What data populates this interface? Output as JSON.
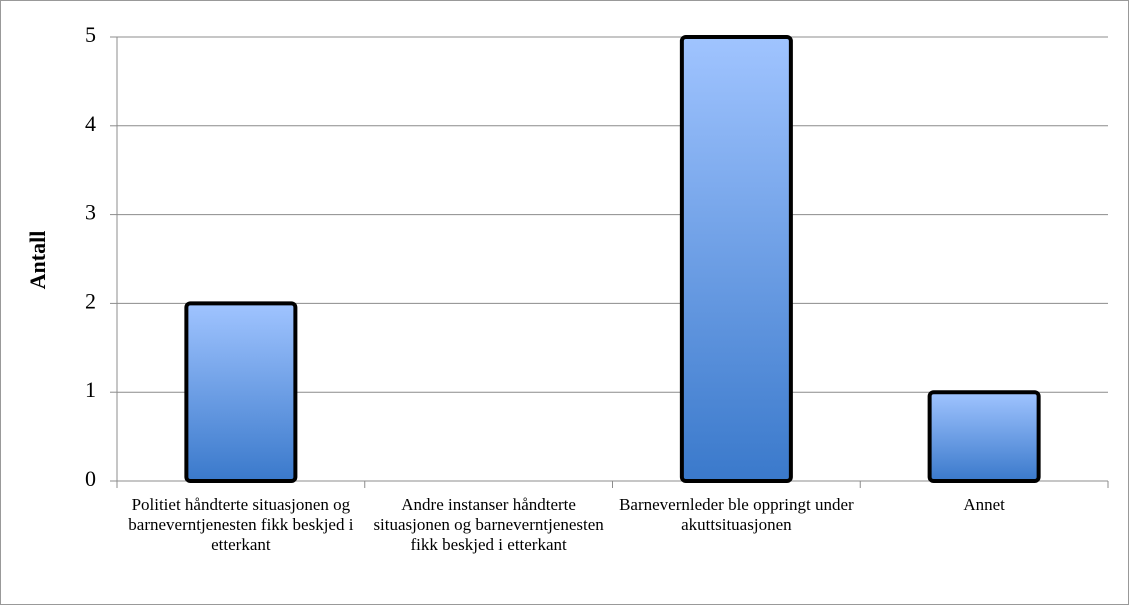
{
  "chart_data": {
    "type": "bar",
    "y_label": "Antall",
    "categories": [
      "Politiet håndterte situasjonen og barneverntjenesten fikk beskjed i etterkant",
      "Andre instanser håndterte situasjonen og barneverntjenesten fikk beskjed i etterkant",
      "Barnevernleder ble oppringt under akuttsituasjonen",
      "Annet"
    ],
    "values": [
      2,
      0,
      5,
      1
    ],
    "colors": [
      "#a0c4ff",
      "#3a79cb"
    ],
    "ylim": [
      0,
      5
    ],
    "yticks": [
      0,
      1,
      2,
      3,
      4,
      5
    ],
    "grid": true
  }
}
